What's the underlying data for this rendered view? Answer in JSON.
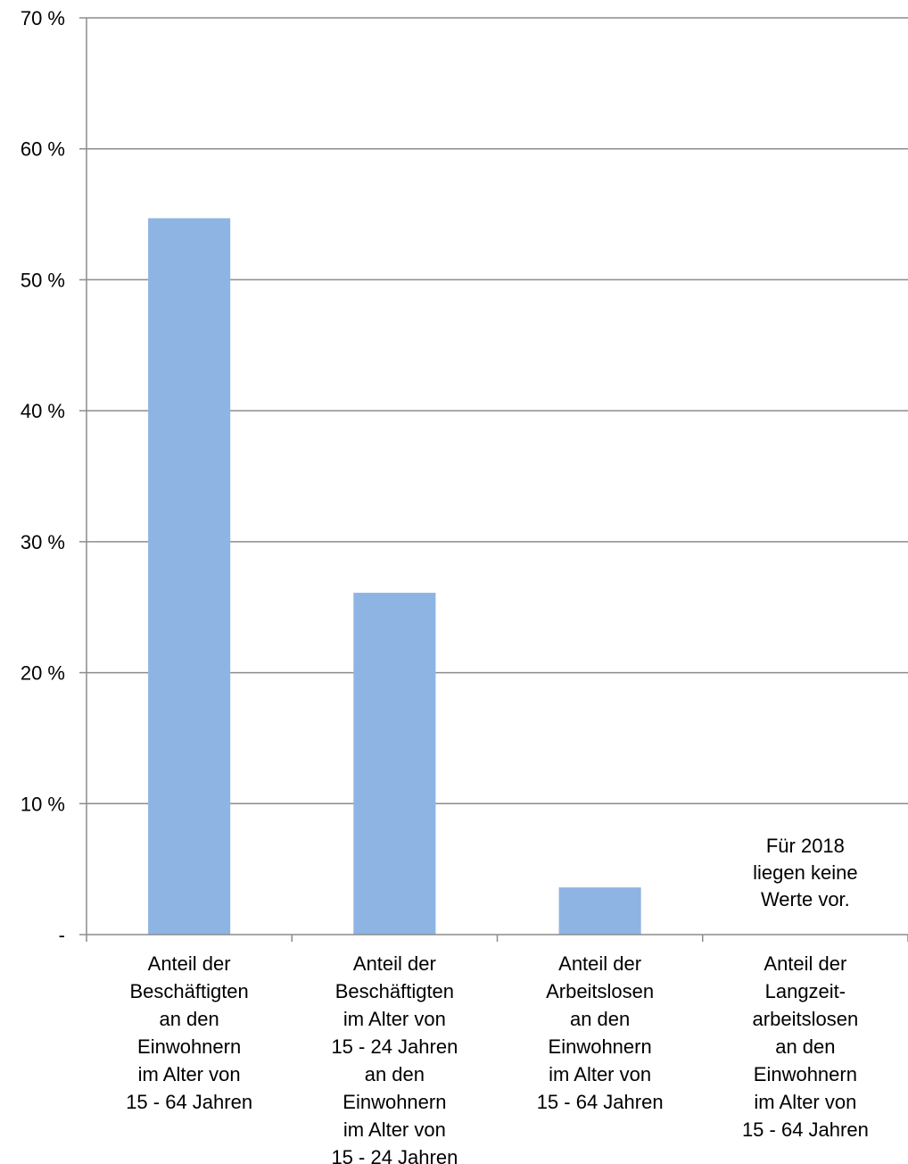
{
  "chart_data": {
    "type": "bar",
    "title": "",
    "xlabel": "",
    "ylabel": "",
    "ylim": [
      0,
      70
    ],
    "yticks": [
      {
        "value": 0,
        "label": "-"
      },
      {
        "value": 10,
        "label": "10 %"
      },
      {
        "value": 20,
        "label": "20 %"
      },
      {
        "value": 30,
        "label": "30 %"
      },
      {
        "value": 40,
        "label": "40 %"
      },
      {
        "value": 50,
        "label": "50 %"
      },
      {
        "value": 60,
        "label": "60 %"
      },
      {
        "value": 70,
        "label": "70 %"
      }
    ],
    "grid": true,
    "bar_color": "#8eb4e3",
    "grid_color": "#8c8c8c",
    "categories": [
      [
        "Anteil der",
        "Beschäftigten",
        "an den",
        "Einwohnern",
        "im Alter von",
        "15 - 64 Jahren"
      ],
      [
        "Anteil der",
        "Beschäftigten",
        "im Alter von",
        "15 - 24 Jahren",
        "an den",
        "Einwohnern",
        "im Alter von",
        "15 - 24 Jahren"
      ],
      [
        "Anteil der",
        "Arbeitslosen",
        "an den",
        "Einwohnern",
        "im Alter von",
        "15 - 64 Jahren"
      ],
      [
        "Anteil der",
        "Langzeit-",
        "arbeitslosen",
        "an den",
        "Einwohnern",
        "im Alter von",
        "15 - 64 Jahren"
      ]
    ],
    "values": [
      54.7,
      26.1,
      3.6,
      null
    ],
    "annotation": [
      "Für 2018",
      "liegen keine",
      "Werte vor."
    ]
  }
}
